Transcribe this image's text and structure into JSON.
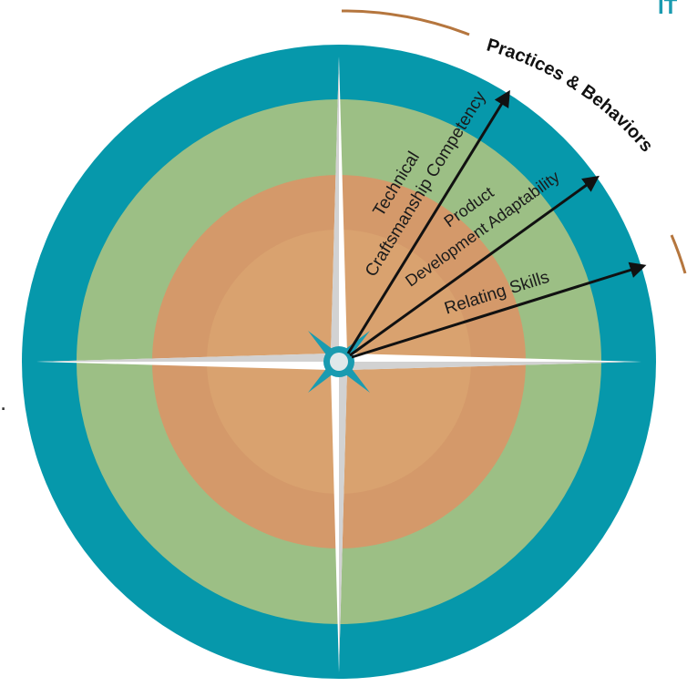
{
  "corner_text": "IT",
  "side_glyph": ".",
  "arc_title": "Practices & Behaviors",
  "labels": {
    "technical_line1": "Technical",
    "technical_line2": "Craftsmanship Competency",
    "product_line1": "Product",
    "product_line2": "Development Adaptability",
    "relating": "Relating Skills"
  },
  "colors": {
    "outer_ring": "#0698ab",
    "middle_ring": "#9cbf85",
    "inner_ring": "#d4996a",
    "core": "#d9a26f",
    "arc_accent": "#b5763e",
    "needle": "#ffffff",
    "needle_shade": "#c9c9c9",
    "hub": "#1a9bb0"
  }
}
